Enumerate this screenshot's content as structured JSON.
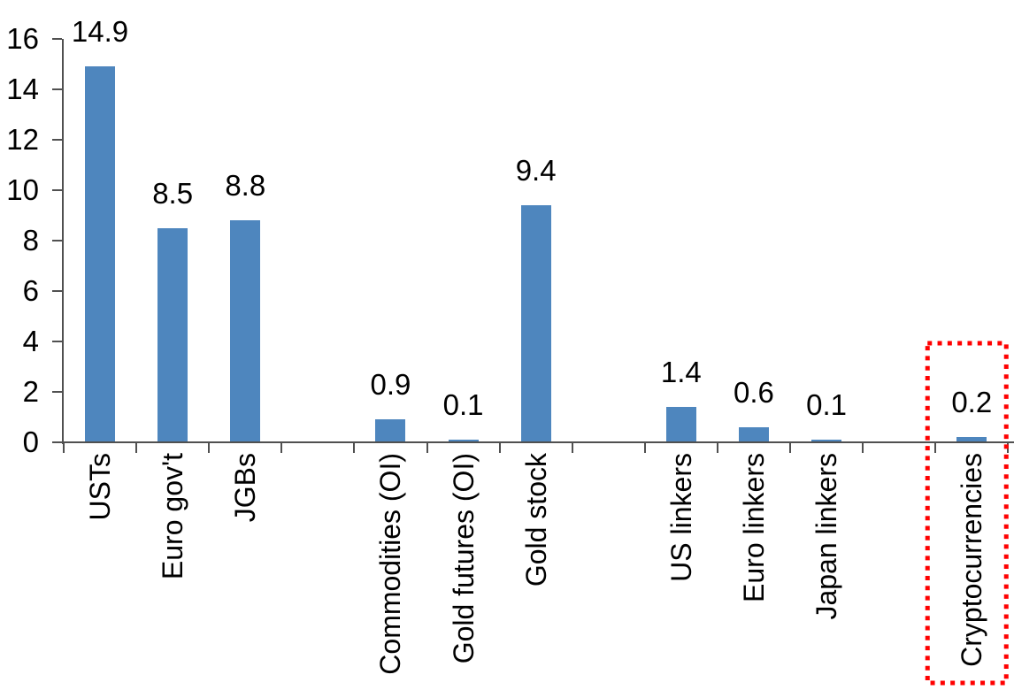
{
  "chart_data": {
    "type": "bar",
    "title": "",
    "xlabel": "",
    "ylabel": "",
    "categories": [
      "USTs",
      "Euro gov't",
      "JGBs",
      "Commodities (OI)",
      "Gold futures (OI)",
      "Gold stock",
      "US linkers",
      "Euro linkers",
      "Japan linkers",
      "Cryptocurrencies"
    ],
    "values": [
      14.9,
      8.5,
      8.8,
      0.9,
      0.1,
      9.4,
      1.4,
      0.6,
      0.1,
      0.2
    ],
    "data_labels": [
      "14.9",
      "8.5",
      "8.8",
      "0.9",
      "0.1",
      "9.4",
      "1.4",
      "0.6",
      "0.1",
      "0.2"
    ],
    "slots": [
      0,
      1,
      2,
      4,
      5,
      6,
      8,
      9,
      10,
      12
    ],
    "total_slots": 13,
    "ylim": [
      0,
      16
    ],
    "ytick_step": 2,
    "ytick_labels": [
      "0",
      "2",
      "4",
      "6",
      "8",
      "10",
      "12",
      "14",
      "16"
    ],
    "grid": false,
    "legend": "none",
    "colors": {
      "bar": "#4E86BE",
      "axis": "#505050",
      "text": "#000000",
      "highlight_box": "#FF0000"
    },
    "annotation": {
      "type": "dotted-box",
      "target_category": "Cryptocurrencies",
      "target_slot": 12,
      "color": "#FF0000"
    }
  }
}
